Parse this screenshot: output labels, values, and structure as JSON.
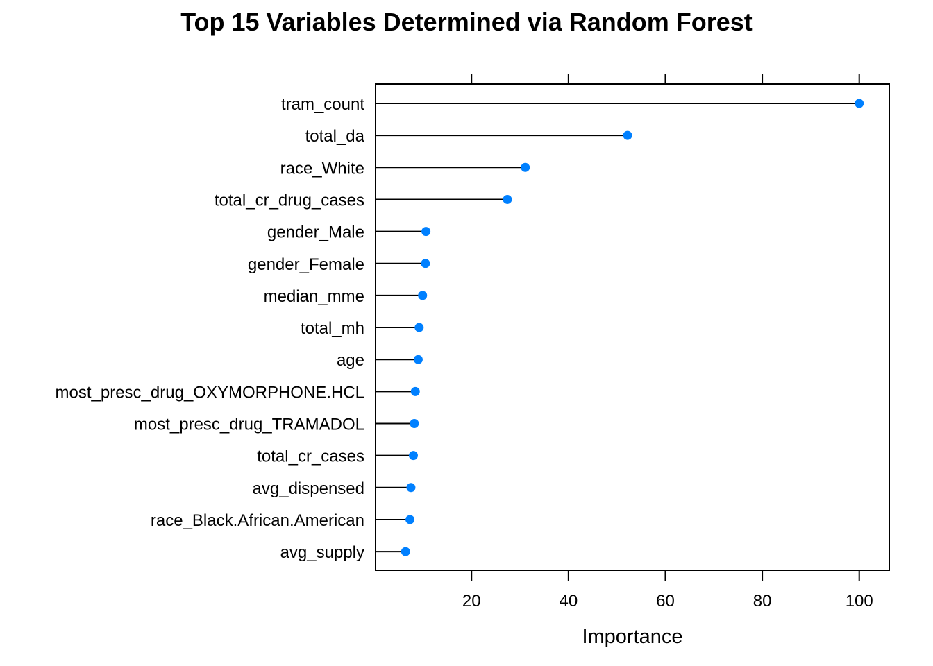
{
  "chart_data": {
    "type": "dot",
    "title": "Top 15 Variables Determined via Random Forest",
    "xlabel": "Importance",
    "ylabel": "",
    "xlim": [
      0.2,
      106.2
    ],
    "xticks": [
      20,
      40,
      60,
      80,
      100
    ],
    "xtick_labels": [
      "20",
      "40",
      "60",
      "80",
      "100"
    ],
    "categories": [
      "tram_count",
      "total_da",
      "race_White",
      "total_cr_drug_cases",
      "gender_Male",
      "gender_Female",
      "median_mme",
      "total_mh",
      "age",
      "most_presc_drug_OXYMORPHONE.HCL",
      "most_presc_drug_TRAMADOL",
      "total_cr_cases",
      "avg_dispensed",
      "race_Black.African.American",
      "avg_supply"
    ],
    "values": [
      100,
      52.2,
      31.1,
      27.4,
      10.6,
      10.5,
      9.9,
      9.2,
      9.0,
      8.4,
      8.2,
      8.0,
      7.5,
      7.3,
      6.4
    ],
    "point_color": "#0080ff",
    "line_color": "#000000",
    "grid": false,
    "legend": "none"
  }
}
